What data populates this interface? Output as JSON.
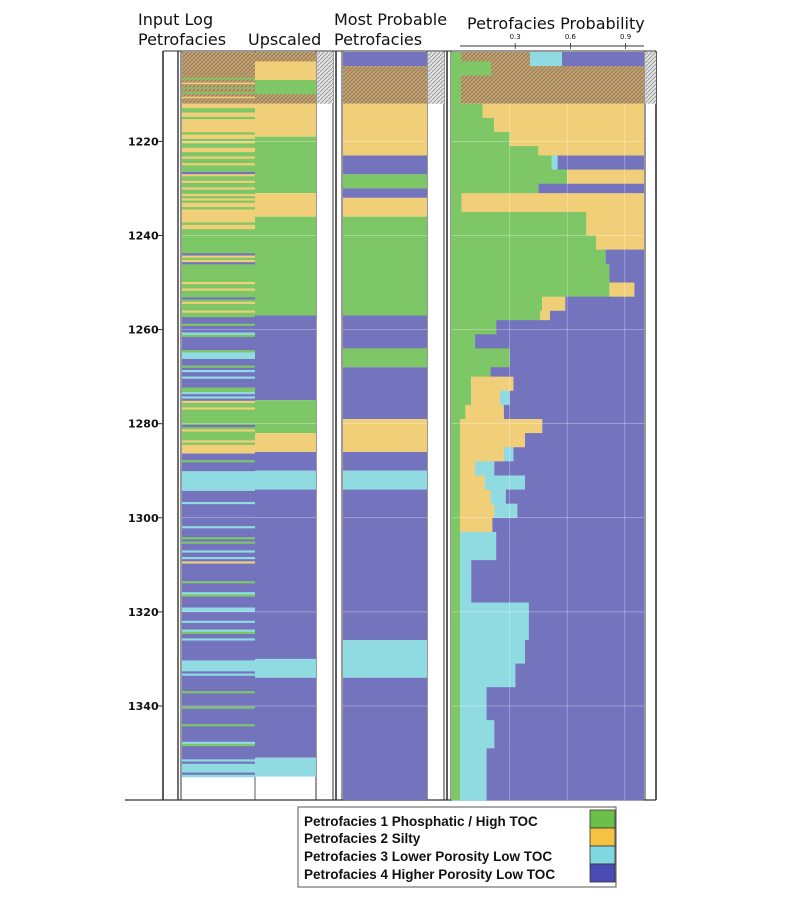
{
  "colors": {
    "F1": "#7dc766",
    "F2": "#f1cf79",
    "F3": "#8fdbe1",
    "F4": "#7474be",
    "hatch": "#c9a775",
    "legend_F1": "#6cc04a",
    "legend_F2": "#f6c244",
    "legend_F3": "#7fd8df",
    "legend_F4": "#4a4ab3"
  },
  "chart_data": {
    "type": "well-log",
    "title": "Petrofacies Probability",
    "depth_unit": "",
    "depth_range": [
      1201,
      1360
    ],
    "depth_ticks": [
      1220,
      1240,
      1260,
      1280,
      1300,
      1320,
      1340
    ],
    "track_headers": {
      "input_log": [
        "Input Log",
        "Petrofacies"
      ],
      "upscaled": [
        "Upscaled"
      ],
      "most_probable": [
        "Most Probable",
        "Petrofacies"
      ],
      "probability": [
        "Petrofacies Probability"
      ]
    },
    "probability_ticks": [
      0.3,
      0.6,
      0.9
    ],
    "header_zone": [
      1201,
      1212
    ],
    "upscaled": [
      {
        "top": 1212,
        "base": 1219,
        "facies": 2
      },
      {
        "top": 1219,
        "base": 1231,
        "facies": 1
      },
      {
        "top": 1231,
        "base": 1236,
        "facies": 2
      },
      {
        "top": 1236,
        "base": 1257,
        "facies": 1
      },
      {
        "top": 1257,
        "base": 1275,
        "facies": 4
      },
      {
        "top": 1275,
        "base": 1282,
        "facies": 1
      },
      {
        "top": 1282,
        "base": 1286,
        "facies": 2
      },
      {
        "top": 1286,
        "base": 1290,
        "facies": 4
      },
      {
        "top": 1290,
        "base": 1294,
        "facies": 3
      },
      {
        "top": 1294,
        "base": 1330,
        "facies": 4
      },
      {
        "top": 1330,
        "base": 1334,
        "facies": 3
      },
      {
        "top": 1334,
        "base": 1351,
        "facies": 4
      },
      {
        "top": 1351,
        "base": 1355,
        "facies": 3
      }
    ],
    "most_probable": [
      {
        "top": 1212,
        "base": 1223,
        "facies": 2
      },
      {
        "top": 1223,
        "base": 1227,
        "facies": 4
      },
      {
        "top": 1227,
        "base": 1230,
        "facies": 1
      },
      {
        "top": 1230,
        "base": 1232,
        "facies": 4
      },
      {
        "top": 1232,
        "base": 1236,
        "facies": 2
      },
      {
        "top": 1236,
        "base": 1257,
        "facies": 1
      },
      {
        "top": 1257,
        "base": 1264,
        "facies": 4
      },
      {
        "top": 1264,
        "base": 1268,
        "facies": 1
      },
      {
        "top": 1268,
        "base": 1279,
        "facies": 4
      },
      {
        "top": 1279,
        "base": 1286,
        "facies": 2
      },
      {
        "top": 1286,
        "base": 1290,
        "facies": 4
      },
      {
        "top": 1290,
        "base": 1294,
        "facies": 3
      },
      {
        "top": 1294,
        "base": 1326,
        "facies": 4
      },
      {
        "top": 1326,
        "base": 1334,
        "facies": 3
      },
      {
        "top": 1334,
        "base": 1360,
        "facies": 4
      }
    ],
    "probability_intervals": [
      {
        "top": 1212,
        "base": 1215,
        "p": [
          0.16,
          0.84,
          0.0,
          0.0
        ]
      },
      {
        "top": 1215,
        "base": 1218,
        "p": [
          0.22,
          0.78,
          0.0,
          0.0
        ]
      },
      {
        "top": 1218,
        "base": 1221,
        "p": [
          0.3,
          0.7,
          0.0,
          0.0
        ]
      },
      {
        "top": 1221,
        "base": 1223,
        "p": [
          0.45,
          0.55,
          0.0,
          0.0
        ]
      },
      {
        "top": 1223,
        "base": 1226,
        "p": [
          0.52,
          0.0,
          0.03,
          0.45
        ]
      },
      {
        "top": 1226,
        "base": 1229,
        "p": [
          0.6,
          0.4,
          0.0,
          0.0
        ]
      },
      {
        "top": 1229,
        "base": 1231,
        "p": [
          0.45,
          0.0,
          0.0,
          0.55
        ]
      },
      {
        "top": 1231,
        "base": 1235,
        "p": [
          0.05,
          0.95,
          0.0,
          0.0
        ]
      },
      {
        "top": 1235,
        "base": 1240,
        "p": [
          0.7,
          0.3,
          0.0,
          0.0
        ]
      },
      {
        "top": 1240,
        "base": 1243,
        "p": [
          0.75,
          0.25,
          0.0,
          0.0
        ]
      },
      {
        "top": 1243,
        "base": 1246,
        "p": [
          0.8,
          0.0,
          0.0,
          0.2
        ]
      },
      {
        "top": 1246,
        "base": 1250,
        "p": [
          0.82,
          0.0,
          0.0,
          0.18
        ]
      },
      {
        "top": 1250,
        "base": 1253,
        "p": [
          0.82,
          0.13,
          0.0,
          0.05
        ]
      },
      {
        "top": 1253,
        "base": 1256,
        "p": [
          0.47,
          0.12,
          0.0,
          0.41
        ]
      },
      {
        "top": 1256,
        "base": 1258,
        "p": [
          0.46,
          0.05,
          0.0,
          0.49
        ]
      },
      {
        "top": 1258,
        "base": 1261,
        "p": [
          0.23,
          0.0,
          0.0,
          0.77
        ]
      },
      {
        "top": 1261,
        "base": 1264,
        "p": [
          0.12,
          0.0,
          0.0,
          0.88
        ]
      },
      {
        "top": 1264,
        "base": 1268,
        "p": [
          0.3,
          0.0,
          0.0,
          0.7
        ]
      },
      {
        "top": 1268,
        "base": 1270,
        "p": [
          0.2,
          0.0,
          0.0,
          0.8
        ]
      },
      {
        "top": 1270,
        "base": 1273,
        "p": [
          0.1,
          0.22,
          0.0,
          0.68
        ]
      },
      {
        "top": 1273,
        "base": 1276,
        "p": [
          0.1,
          0.15,
          0.05,
          0.7
        ]
      },
      {
        "top": 1276,
        "base": 1279,
        "p": [
          0.07,
          0.2,
          0.0,
          0.73
        ]
      },
      {
        "top": 1279,
        "base": 1282,
        "p": [
          0.02,
          0.45,
          0.0,
          0.53
        ]
      },
      {
        "top": 1282,
        "base": 1285,
        "p": [
          0.03,
          0.35,
          0.0,
          0.62
        ]
      },
      {
        "top": 1285,
        "base": 1288,
        "p": [
          0.02,
          0.25,
          0.05,
          0.68
        ]
      },
      {
        "top": 1288,
        "base": 1291,
        "p": [
          0.0,
          0.12,
          0.1,
          0.78
        ]
      },
      {
        "top": 1291,
        "base": 1294,
        "p": [
          0.02,
          0.15,
          0.21,
          0.62
        ]
      },
      {
        "top": 1294,
        "base": 1297,
        "p": [
          0.0,
          0.2,
          0.08,
          0.72
        ]
      },
      {
        "top": 1297,
        "base": 1300,
        "p": [
          0.0,
          0.22,
          0.12,
          0.66
        ]
      },
      {
        "top": 1300,
        "base": 1303,
        "p": [
          0.0,
          0.21,
          0.0,
          0.79
        ]
      },
      {
        "top": 1303,
        "base": 1309,
        "p": [
          0.0,
          0.0,
          0.23,
          0.77
        ]
      },
      {
        "top": 1309,
        "base": 1318,
        "p": [
          0.0,
          0.0,
          0.1,
          0.9
        ]
      },
      {
        "top": 1318,
        "base": 1326,
        "p": [
          0.0,
          0.0,
          0.4,
          0.6
        ]
      },
      {
        "top": 1326,
        "base": 1331,
        "p": [
          0.0,
          0.0,
          0.38,
          0.62
        ]
      },
      {
        "top": 1331,
        "base": 1336,
        "p": [
          0.0,
          0.0,
          0.33,
          0.67
        ]
      },
      {
        "top": 1336,
        "base": 1343,
        "p": [
          0.0,
          0.0,
          0.18,
          0.82
        ]
      },
      {
        "top": 1343,
        "base": 1349,
        "p": [
          0.0,
          0.0,
          0.22,
          0.78
        ]
      },
      {
        "top": 1349,
        "base": 1360,
        "p": [
          0.0,
          0.0,
          0.18,
          0.82
        ]
      }
    ],
    "legend": [
      {
        "label": "Petrofacies 1 Phosphatic / High TOC",
        "facies": 1
      },
      {
        "label": "Petrofacies 2 Silty",
        "facies": 2
      },
      {
        "label": "Petrofacies 3 Lower Porosity Low TOC",
        "facies": 3
      },
      {
        "label": "Petrofacies 4 Higher Porosity Low TOC",
        "facies": 4
      }
    ]
  }
}
